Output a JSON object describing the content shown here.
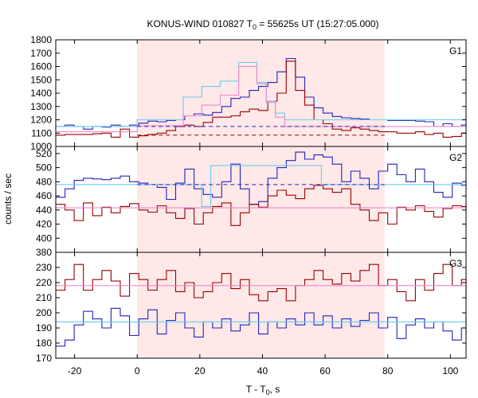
{
  "chart_data": {
    "type": "line",
    "title_main": "KONUS-WIND 010827 T",
    "title_sub": "0",
    "title_rest": " = 55625s UT (15:27:05.000)",
    "xlabel_main": "T - T",
    "xlabel_sub": "0",
    "xlabel_rest": ", s",
    "ylabel": "counts / sec",
    "xlim": [
      -26,
      105
    ],
    "xticks": [
      -20,
      0,
      20,
      40,
      60,
      80,
      100
    ],
    "shaded_interval": [
      0,
      79
    ],
    "shade_color": "#ffe8e8",
    "colors": {
      "red": "#990000",
      "blue": "#2222bb",
      "cyan": "#66ccee",
      "pink": "#ee88cc"
    },
    "panels": [
      {
        "label": "G1",
        "ylim": [
          1000,
          1800
        ],
        "yticks": [
          1000,
          1100,
          1200,
          1300,
          1400,
          1500,
          1600,
          1700,
          1800
        ],
        "bin_width": 2.944,
        "x0": -26,
        "series": [
          {
            "color_key": "blue",
            "values": [
              1150,
              1160,
              1150,
              1130,
              1150,
              1145,
              1160,
              1150,
              1160,
              1175,
              1190,
              1185,
              1195,
              1200,
              1230,
              1245,
              1235,
              1255,
              1300,
              1360,
              1370,
              1420,
              1450,
              1480,
              1560,
              1660,
              1520,
              1370,
              1290,
              1250,
              1225,
              1215,
              1210,
              1205,
              1200,
              1200,
              1195,
              1195,
              1195,
              1190,
              1185,
              1150,
              1170,
              1150,
              1160,
              1155,
              1165,
              1170
            ]
          },
          {
            "color_key": "red",
            "values": [
              1085,
              1090,
              1090,
              1090,
              1095,
              1100,
              1070,
              1130,
              1070,
              1080,
              1090,
              1100,
              1120,
              1150,
              1160,
              1150,
              1180,
              1220,
              1220,
              1230,
              1260,
              1280,
              1270,
              1340,
              1400,
              1640,
              1420,
              1310,
              1200,
              1170,
              1130,
              1120,
              1140,
              1130,
              1120,
              1110,
              1110,
              1100,
              1100,
              1110,
              1090,
              1100,
              1070,
              1075,
              1100,
              1090,
              1100,
              1090
            ]
          },
          {
            "type": "step",
            "color_key": "cyan",
            "points": [
              [
                -26,
                1150
              ],
              [
                0,
                1150
              ],
              [
                0,
                1200
              ],
              [
                14.7,
                1200
              ],
              [
                14.7,
                1370
              ],
              [
                20.6,
                1370
              ],
              [
                20.6,
                1450
              ],
              [
                26.5,
                1450
              ],
              [
                26.5,
                1490
              ],
              [
                32.4,
                1490
              ],
              [
                32.4,
                1630
              ],
              [
                38.2,
                1630
              ],
              [
                38.2,
                1480
              ],
              [
                41.2,
                1480
              ],
              [
                41.2,
                1340
              ],
              [
                44.1,
                1340
              ],
              [
                44.1,
                1250
              ],
              [
                47.1,
                1250
              ],
              [
                47.1,
                1200
              ],
              [
                105,
                1200
              ]
            ]
          },
          {
            "type": "step",
            "color_key": "pink",
            "points": [
              [
                -26,
                1110
              ],
              [
                0,
                1110
              ],
              [
                0,
                1155
              ],
              [
                14.7,
                1155
              ],
              [
                14.7,
                1230
              ],
              [
                20.6,
                1230
              ],
              [
                20.6,
                1310
              ],
              [
                26.5,
                1310
              ],
              [
                26.5,
                1385
              ],
              [
                32.4,
                1385
              ],
              [
                32.4,
                1600
              ],
              [
                38.2,
                1600
              ],
              [
                38.2,
                1470
              ],
              [
                41.2,
                1470
              ],
              [
                41.2,
                1330
              ],
              [
                44.1,
                1330
              ],
              [
                44.1,
                1220
              ],
              [
                47.1,
                1220
              ],
              [
                47.1,
                1150
              ],
              [
                105,
                1150
              ]
            ]
          },
          {
            "type": "dashed",
            "color_key": "blue",
            "from": 0,
            "to": 79,
            "value": 1150
          },
          {
            "type": "dashed",
            "color_key": "red",
            "from": 0,
            "to": 79,
            "value": 1085
          }
        ]
      },
      {
        "label": "G2",
        "ylim": [
          380,
          530
        ],
        "yticks": [
          380,
          400,
          420,
          440,
          460,
          480,
          500,
          520
        ],
        "bin_width": 2.944,
        "x0": -26,
        "series": [
          {
            "color_key": "blue",
            "values": [
              458,
              470,
              482,
              485,
              484,
              483,
              485,
              488,
              480,
              478,
              476,
              472,
              455,
              478,
              498,
              470,
              462,
              458,
              480,
              505,
              470,
              448,
              452,
              485,
              500,
              510,
              522,
              512,
              518,
              515,
              505,
              480,
              495,
              485,
              470,
              495,
              505,
              490,
              480,
              498,
              480,
              465,
              458,
              478,
              475,
              472,
              470,
              485,
              480
            ]
          },
          {
            "color_key": "red",
            "values": [
              448,
              440,
              425,
              450,
              432,
              444,
              436,
              445,
              449,
              440,
              437,
              446,
              436,
              428,
              442,
              420,
              436,
              445,
              450,
              418,
              436,
              448,
              444,
              460,
              468,
              461,
              456,
              470,
              475,
              470,
              465,
              470,
              448,
              440,
              425,
              436,
              420,
              444,
              440,
              446,
              438,
              430,
              442,
              446,
              445,
              450,
              440,
              436,
              442
            ]
          },
          {
            "type": "step",
            "color_key": "cyan",
            "points": [
              [
                -26,
                476
              ],
              [
                0,
                476
              ],
              [
                0,
                476
              ],
              [
                20.6,
                476
              ],
              [
                20.6,
                445
              ],
              [
                23.5,
                445
              ],
              [
                23.5,
                503
              ],
              [
                58.8,
                503
              ],
              [
                58.8,
                476
              ],
              [
                105,
                476
              ]
            ]
          },
          {
            "type": "step",
            "color_key": "pink",
            "points": [
              [
                -26,
                443
              ],
              [
                0,
                443
              ],
              [
                0,
                443
              ],
              [
                20.6,
                443
              ],
              [
                20.6,
                443
              ],
              [
                105,
                443
              ]
            ]
          },
          {
            "type": "dashed",
            "color_key": "blue",
            "from": 0,
            "to": 79,
            "value": 476
          }
        ]
      },
      {
        "label": "G3",
        "ylim": [
          170,
          240
        ],
        "yticks": [
          170,
          180,
          190,
          200,
          210,
          220,
          230
        ],
        "bin_width": 2.944,
        "x0": -26,
        "series": [
          {
            "color_key": "red",
            "values": [
              215,
              222,
              232,
              215,
              222,
              228,
              221,
              211,
              226,
              222,
              215,
              222,
              228,
              214,
              220,
              210,
              214,
              220,
              226,
              216,
              222,
              212,
              208,
              214,
              216,
              208,
              218,
              222,
              228,
              222,
              219,
              226,
              221,
              228,
              232,
              218,
              222,
              214,
              208,
              222,
              215,
              226,
              232,
              218,
              222,
              216,
              222,
              208,
              214
            ]
          },
          {
            "color_key": "blue",
            "values": [
              178,
              182,
              192,
              201,
              196,
              190,
              203,
              198,
              185,
              196,
              202,
              186,
              195,
              200,
              190,
              184,
              194,
              190,
              196,
              188,
              192,
              200,
              186,
              194,
              190,
              196,
              192,
              200,
              192,
              198,
              190,
              196,
              191,
              195,
              200,
              190,
              197,
              183,
              192,
              196,
              190,
              194,
              188,
              182,
              190,
              196,
              200,
              186,
              190
            ]
          },
          {
            "type": "step",
            "color_key": "pink",
            "points": [
              [
                -26,
                218
              ],
              [
                105,
                218
              ]
            ]
          },
          {
            "type": "step",
            "color_key": "cyan",
            "points": [
              [
                -26,
                194
              ],
              [
                105,
                194
              ]
            ]
          }
        ]
      }
    ]
  }
}
